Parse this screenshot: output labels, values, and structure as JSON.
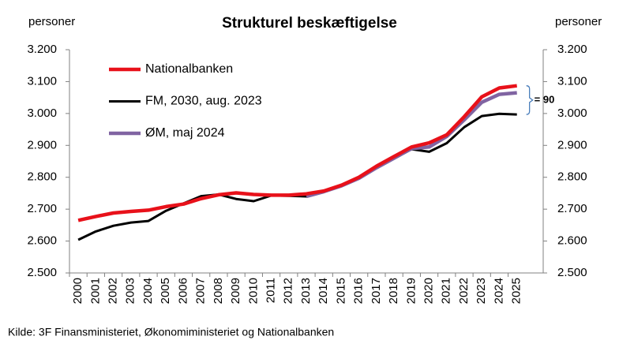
{
  "chart_data": {
    "type": "line",
    "title": "Strukturel beskæftigelse",
    "y_label": "personer",
    "y2_label": "personer",
    "categories": [
      "2000",
      "2001",
      "2002",
      "2003",
      "2004",
      "2005",
      "2006",
      "2007",
      "2008",
      "2009",
      "2010",
      "2011",
      "2012",
      "2013",
      "2014",
      "2015",
      "2016",
      "2017",
      "2018",
      "2019",
      "2020",
      "2021",
      "2022",
      "2023",
      "2024",
      "2025"
    ],
    "series": [
      {
        "name": "Nationalbanken",
        "color": "#e8111a",
        "values": [
          2665,
          2677,
          2688,
          2693,
          2697,
          2708,
          2716,
          2733,
          2745,
          2751,
          2746,
          2744,
          2744,
          2748,
          2757,
          2775,
          2800,
          2835,
          2865,
          2895,
          2908,
          2933,
          2990,
          3052,
          3080,
          3087
        ]
      },
      {
        "name": "FM, 2030, aug. 2023",
        "color": "#000000",
        "values": [
          2604,
          2630,
          2648,
          2658,
          2663,
          2695,
          2718,
          2741,
          2746,
          2732,
          2725,
          2743,
          2742,
          2740,
          2754,
          2772,
          2796,
          2829,
          2859,
          2888,
          2880,
          2907,
          2957,
          2992,
          2999,
          2997
        ]
      },
      {
        "name": "ØM, maj 2024",
        "color": "#8064a2",
        "values": [
          null,
          null,
          null,
          null,
          null,
          null,
          null,
          null,
          null,
          null,
          null,
          null,
          null,
          2740,
          2755,
          2773,
          2797,
          2830,
          2860,
          2890,
          2895,
          2928,
          2980,
          3035,
          3060,
          3065
        ]
      }
    ],
    "ylim": [
      2500,
      3200
    ],
    "yticks": [
      {
        "value": 2500,
        "label": "2.500"
      },
      {
        "value": 2600,
        "label": "2.600"
      },
      {
        "value": 2700,
        "label": "2.700"
      },
      {
        "value": 2800,
        "label": "2.800"
      },
      {
        "value": 2900,
        "label": "2.900"
      },
      {
        "value": 3000,
        "label": "3.000"
      },
      {
        "value": 3100,
        "label": "3.100"
      },
      {
        "value": 3200,
        "label": "3.200"
      }
    ],
    "y2lim": [
      2500,
      3200
    ],
    "y2ticks": [
      {
        "value": 2500,
        "label": "2.500"
      },
      {
        "value": 2600,
        "label": "2.600"
      },
      {
        "value": 2700,
        "label": "2.700"
      },
      {
        "value": 2800,
        "label": "2.800"
      },
      {
        "value": 2900,
        "label": "2.900"
      },
      {
        "value": 3000,
        "label": "3.000"
      },
      {
        "value": 3100,
        "label": "3.100"
      },
      {
        "value": 3200,
        "label": "3.200"
      }
    ],
    "grid": false,
    "legend": "upper-left",
    "annotation": "= 90",
    "source": "Kilde: 3F Finansministeriet, Økonomiministeriet og Nationalbanken"
  }
}
